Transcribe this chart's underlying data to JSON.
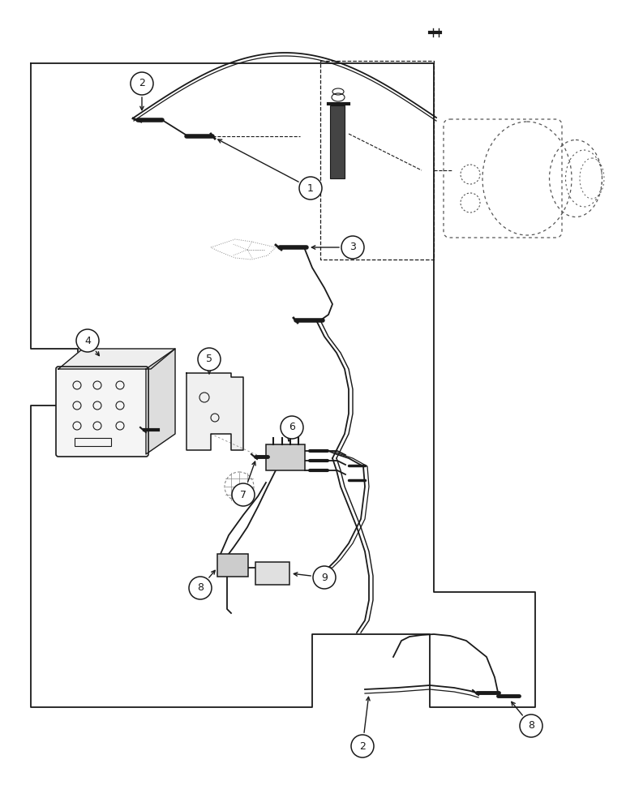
{
  "bg_color": "#ffffff",
  "line_color": "#1a1a1a",
  "fig_width": 7.72,
  "fig_height": 10.0,
  "dpi": 100
}
